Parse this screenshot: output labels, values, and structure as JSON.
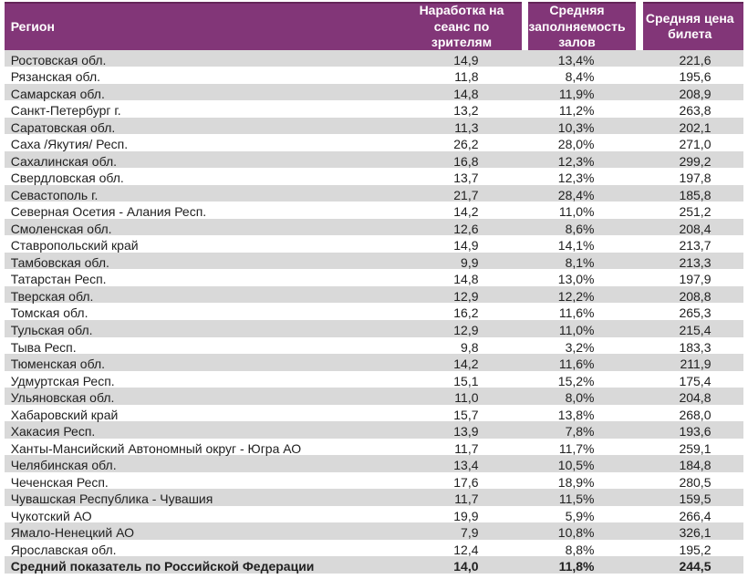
{
  "colors": {
    "header_bg": "#823678",
    "header_top_border": "#642659",
    "stripe": "#d9d9d9",
    "text": "#212121",
    "header_text": "#ffffff"
  },
  "header": {
    "region": "Регион",
    "per_session": "Наработка на\nсеанс по\nзрителям",
    "occupancy": "Средняя\nзаполняемость\nзалов",
    "price": "Средняя цена\nбилета"
  },
  "rows": [
    [
      "Ростовская обл.",
      "14,9",
      "13,4%",
      "221,6"
    ],
    [
      "Рязанская обл.",
      "11,8",
      "8,4%",
      "195,6"
    ],
    [
      "Самарская обл.",
      "14,8",
      "11,9%",
      "208,9"
    ],
    [
      "Санкт-Петербург г.",
      "13,2",
      "11,2%",
      "263,8"
    ],
    [
      "Саратовская обл.",
      "11,3",
      "10,3%",
      "202,1"
    ],
    [
      "Саха /Якутия/ Респ.",
      "26,2",
      "28,0%",
      "271,0"
    ],
    [
      "Сахалинская обл.",
      "16,8",
      "12,3%",
      "299,2"
    ],
    [
      "Свердловская обл.",
      "13,7",
      "12,3%",
      "197,8"
    ],
    [
      "Севастополь г.",
      "21,7",
      "28,4%",
      "185,8"
    ],
    [
      "Северная Осетия - Алания Респ.",
      "14,2",
      "11,0%",
      "251,2"
    ],
    [
      "Смоленская обл.",
      "12,6",
      "8,6%",
      "208,4"
    ],
    [
      "Ставропольский край",
      "14,9",
      "14,1%",
      "213,7"
    ],
    [
      "Тамбовская обл.",
      "9,9",
      "8,1%",
      "213,3"
    ],
    [
      "Татарстан Респ.",
      "14,8",
      "13,0%",
      "197,9"
    ],
    [
      "Тверская обл.",
      "12,9",
      "12,2%",
      "208,8"
    ],
    [
      "Томская обл.",
      "16,2",
      "11,6%",
      "265,3"
    ],
    [
      "Тульская обл.",
      "12,9",
      "11,0%",
      "215,4"
    ],
    [
      "Тыва Респ.",
      "9,8",
      "3,2%",
      "183,3"
    ],
    [
      "Тюменская обл.",
      "14,2",
      "11,6%",
      "211,9"
    ],
    [
      "Удмуртская Респ.",
      "15,1",
      "15,2%",
      "175,4"
    ],
    [
      "Ульяновская обл.",
      "11,0",
      "8,0%",
      "204,8"
    ],
    [
      "Хабаровский край",
      "15,7",
      "13,8%",
      "268,0"
    ],
    [
      "Хакасия Респ.",
      "13,9",
      "7,8%",
      "193,6"
    ],
    [
      "Ханты-Мансийский Автономный округ - Югра АО",
      "11,7",
      "11,7%",
      "259,1"
    ],
    [
      "Челябинская обл.",
      "13,4",
      "10,5%",
      "184,8"
    ],
    [
      "Чеченская Респ.",
      "17,6",
      "18,9%",
      "280,5"
    ],
    [
      "Чувашская Республика - Чувашия",
      "11,7",
      "11,5%",
      "159,5"
    ],
    [
      "Чукотский АО",
      "19,9",
      "5,9%",
      "266,4"
    ],
    [
      "Ямало-Ненецкий АО",
      "7,9",
      "10,8%",
      "326,1"
    ],
    [
      "Ярославская обл.",
      "12,4",
      "8,8%",
      "195,2"
    ]
  ],
  "summary": {
    "label": "Средний показатель по Российской Федерации",
    "per_session": "14,0",
    "occupancy": "11,8%",
    "price": "244,5"
  }
}
